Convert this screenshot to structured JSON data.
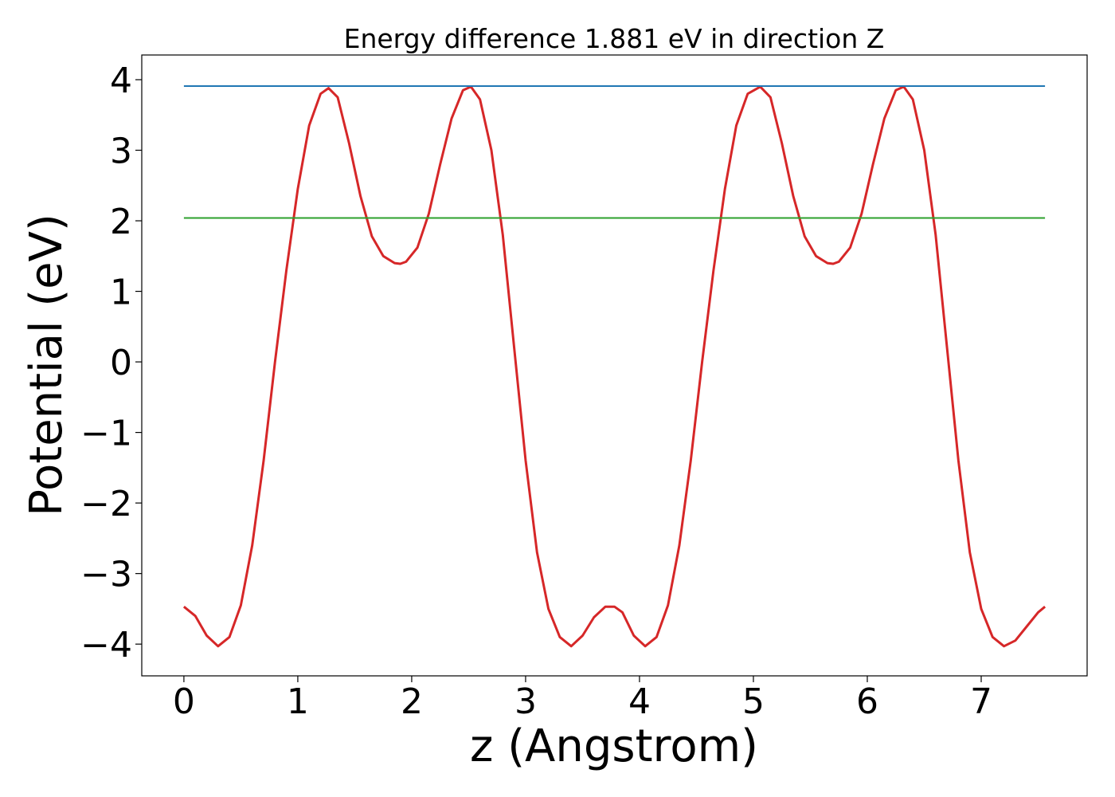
{
  "chart_data": {
    "type": "line",
    "title": "Energy difference 1.881 eV in direction Z",
    "xlabel": "z (Angstrom)",
    "ylabel": "Potential (eV)",
    "xlim": [
      -0.37,
      7.93
    ],
    "ylim": [
      -4.45,
      4.35
    ],
    "xticks": [
      0,
      1,
      2,
      3,
      4,
      5,
      6,
      7
    ],
    "xtick_labels": [
      "0",
      "1",
      "2",
      "3",
      "4",
      "5",
      "6",
      "7"
    ],
    "yticks": [
      4,
      3,
      2,
      1,
      0,
      -1,
      -2,
      -3,
      -4
    ],
    "ytick_labels": [
      "4",
      "3",
      "2",
      "1",
      "0",
      "−1",
      "−2",
      "−3",
      "−4"
    ],
    "grid": false,
    "legend": "none",
    "series": [
      {
        "color": "#d62728",
        "x": [
          0.0,
          0.1,
          0.2,
          0.3,
          0.4,
          0.5,
          0.6,
          0.7,
          0.8,
          0.9,
          1.0,
          1.1,
          1.2,
          1.27,
          1.35,
          1.45,
          1.55,
          1.65,
          1.75,
          1.85,
          1.9,
          1.95,
          2.05,
          2.15,
          2.25,
          2.35,
          2.45,
          2.52,
          2.6,
          2.7,
          2.8,
          2.9,
          3.0,
          3.1,
          3.2,
          3.3,
          3.4,
          3.5,
          3.6,
          3.7,
          3.78,
          3.85,
          3.95,
          4.05,
          4.15,
          4.25,
          4.35,
          4.45,
          4.55,
          4.65,
          4.75,
          4.85,
          4.95,
          5.06,
          5.15,
          5.25,
          5.35,
          5.45,
          5.55,
          5.65,
          5.7,
          5.75,
          5.85,
          5.95,
          6.05,
          6.15,
          6.25,
          6.32,
          6.4,
          6.5,
          6.6,
          6.7,
          6.8,
          6.9,
          7.0,
          7.1,
          7.2,
          7.3,
          7.4,
          7.5,
          7.56
        ],
        "values": [
          -3.47,
          -3.6,
          -3.88,
          -4.03,
          -3.9,
          -3.45,
          -2.6,
          -1.4,
          0.0,
          1.3,
          2.45,
          3.35,
          3.8,
          3.88,
          3.75,
          3.1,
          2.35,
          1.78,
          1.5,
          1.4,
          1.39,
          1.42,
          1.62,
          2.1,
          2.8,
          3.45,
          3.85,
          3.9,
          3.72,
          3.0,
          1.8,
          0.2,
          -1.4,
          -2.7,
          -3.5,
          -3.9,
          -4.03,
          -3.88,
          -3.62,
          -3.47,
          -3.47,
          -3.55,
          -3.88,
          -4.03,
          -3.9,
          -3.45,
          -2.6,
          -1.4,
          0.0,
          1.3,
          2.45,
          3.35,
          3.8,
          3.9,
          3.75,
          3.1,
          2.35,
          1.78,
          1.5,
          1.4,
          1.39,
          1.42,
          1.62,
          2.1,
          2.8,
          3.45,
          3.85,
          3.9,
          3.72,
          3.0,
          1.8,
          0.2,
          -1.4,
          -2.7,
          -3.5,
          -3.9,
          -4.03,
          -3.95,
          -3.75,
          -3.55,
          -3.47
        ]
      },
      {
        "color": "#1f77b4",
        "x": [
          0.0,
          7.56
        ],
        "values": [
          3.91,
          3.91
        ]
      },
      {
        "color": "#2ca02c",
        "x": [
          0.0,
          7.56
        ],
        "values": [
          2.04,
          2.04
        ]
      }
    ]
  }
}
